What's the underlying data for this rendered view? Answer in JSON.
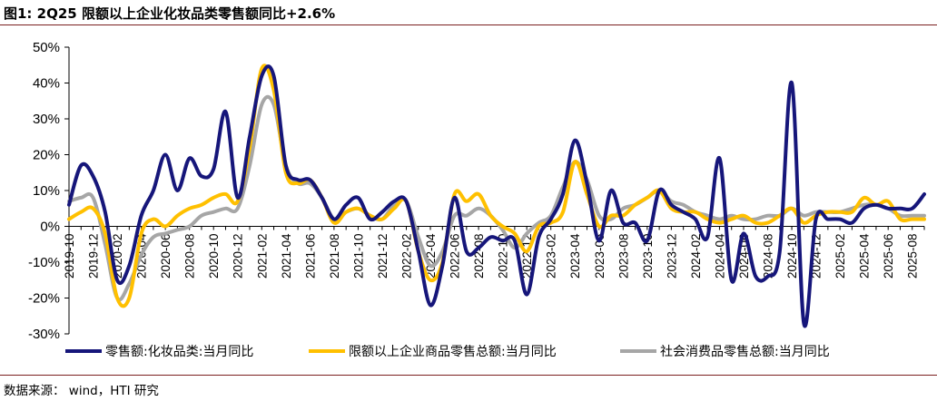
{
  "title": "图1:  2Q25 限额以上企业化妆品类零售额同比+2.6%",
  "source": "数据来源：  wind，HTI 研究",
  "chart_data": {
    "type": "line",
    "title": "图1:  2Q25 限额以上企业化妆品类零售额同比+2.6%",
    "ylim": [
      -30,
      50
    ],
    "yticks": [
      -30,
      -20,
      -10,
      0,
      10,
      20,
      30,
      40,
      50
    ],
    "ytick_format": "percent",
    "x_tick_labels": [
      "2019-10",
      "2019-12",
      "2020-02",
      "2020-04",
      "2020-06",
      "2020-08",
      "2020-10",
      "2020-12",
      "2021-02",
      "2021-04",
      "2021-06",
      "2021-08",
      "2021-10",
      "2021-12",
      "2022-02",
      "2022-04",
      "2022-06",
      "2022-08",
      "2022-10",
      "2022-12",
      "2023-02",
      "2023-04",
      "2023-06",
      "2023-08",
      "2023-10",
      "2023-12",
      "2024-02",
      "2024-04",
      "2024-06",
      "2024-08",
      "2024-10",
      "2024-12",
      "2025-02",
      "2025-04",
      "2025-06",
      "2025-08"
    ],
    "x": [
      "2019-10",
      "2019-11",
      "2019-12",
      "2020-01",
      "2020-02",
      "2020-03",
      "2020-04",
      "2020-05",
      "2020-06",
      "2020-07",
      "2020-08",
      "2020-09",
      "2020-10",
      "2020-11",
      "2020-12",
      "2021-01",
      "2021-02",
      "2021-03",
      "2021-04",
      "2021-05",
      "2021-06",
      "2021-07",
      "2021-08",
      "2021-09",
      "2021-10",
      "2021-11",
      "2021-12",
      "2022-01",
      "2022-02",
      "2022-03",
      "2022-04",
      "2022-05",
      "2022-06",
      "2022-07",
      "2022-08",
      "2022-09",
      "2022-10",
      "2022-11",
      "2022-12",
      "2023-01",
      "2023-02",
      "2023-03",
      "2023-04",
      "2023-05",
      "2023-06",
      "2023-07",
      "2023-08",
      "2023-09",
      "2023-10",
      "2023-11",
      "2023-12",
      "2024-01",
      "2024-02",
      "2024-03",
      "2024-04",
      "2024-05",
      "2024-06",
      "2024-07",
      "2024-08",
      "2024-09",
      "2024-10",
      "2024-11",
      "2024-12",
      "2025-01",
      "2025-02",
      "2025-03",
      "2025-04",
      "2025-05",
      "2025-06",
      "2025-07",
      "2025-08",
      "2025-09"
    ],
    "grid": false,
    "legend_position": "bottom",
    "series": [
      {
        "name": "零售额:化妆品类:当月同比",
        "color": "#16167a",
        "values": [
          6,
          17,
          14,
          4,
          -15,
          -11,
          3,
          10,
          20,
          10,
          19,
          14,
          16,
          32,
          8,
          25,
          42,
          42,
          17,
          13,
          13,
          8,
          2,
          6,
          8,
          2,
          4,
          7,
          7,
          -7,
          -22,
          -11,
          8,
          -7,
          -6,
          -3,
          -4,
          -4,
          -19,
          -3,
          2,
          9,
          24,
          12,
          -4,
          10,
          1,
          1,
          -4,
          10,
          6,
          4,
          2,
          -3,
          19,
          -15,
          -2,
          -14,
          -14,
          -7,
          40,
          -27,
          2,
          2,
          2,
          1,
          5,
          6,
          5,
          5,
          5,
          9
        ]
      },
      {
        "name": "限额以上企业商品零售总额:当月同比",
        "color": "#ffc000",
        "values": [
          2,
          4,
          5,
          -2,
          -20,
          -20,
          -2,
          2,
          0,
          3,
          5,
          6,
          8,
          9,
          7,
          22,
          44,
          38,
          15,
          12,
          13,
          8,
          1,
          4,
          5,
          3,
          2,
          5,
          7,
          -7,
          -15,
          -10,
          9,
          7,
          9,
          3,
          0,
          -2,
          -7,
          0,
          1,
          4,
          18,
          9,
          0,
          3,
          3,
          6,
          8,
          10,
          5,
          4,
          4,
          2,
          1,
          2,
          3,
          1,
          1,
          3,
          5,
          1,
          3,
          4,
          4,
          4,
          8,
          6,
          7,
          2,
          2,
          2
        ]
      },
      {
        "name": "社会消费品零售总额:当月同比",
        "color": "#a6a6a6",
        "values": [
          7,
          8,
          8,
          -5,
          -20,
          -16,
          -8,
          -3,
          -2,
          -1,
          0,
          3,
          4,
          5,
          5,
          17,
          34,
          34,
          17,
          12,
          12,
          8,
          2,
          4,
          5,
          3,
          2,
          6,
          7,
          -3,
          -11,
          -7,
          3,
          3,
          5,
          3,
          -1,
          -6,
          -2,
          1,
          3,
          11,
          18,
          13,
          3,
          2,
          5,
          6,
          8,
          10,
          7,
          6,
          4,
          3,
          2,
          3,
          2,
          2,
          3,
          3,
          5,
          3,
          4,
          4,
          4,
          5,
          6,
          6,
          5,
          3,
          3,
          3
        ]
      }
    ]
  }
}
